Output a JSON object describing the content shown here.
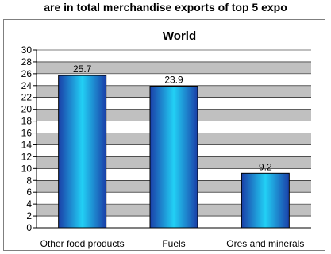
{
  "page_heading": "are in total merchandise exports of top 5 expo",
  "chart_data": {
    "type": "bar",
    "title": "World",
    "categories": [
      "Other food products",
      "Fuels",
      "Ores and minerals"
    ],
    "values": [
      25.7,
      23.9,
      9.2
    ],
    "data_labels": [
      "25.7",
      "23.9",
      "9.2"
    ],
    "ylim": [
      0,
      30
    ],
    "yticks": [
      0,
      2,
      4,
      6,
      8,
      10,
      12,
      14,
      16,
      18,
      20,
      22,
      24,
      26,
      28,
      30
    ],
    "ytick_labels": [
      "0",
      "2",
      "4",
      "6",
      "8",
      "10",
      "12",
      "14",
      "16",
      "18",
      "20",
      "22",
      "24",
      "26",
      "28",
      "30"
    ],
    "xlabel": "",
    "ylabel": "",
    "grid": true,
    "legend": "none",
    "colors": {
      "bar_dark": "#1a3fa8",
      "bar_light": "#22d0f5",
      "band_gray": "#c0c0c0",
      "band_white": "#ffffff",
      "gridline": "#000000"
    }
  }
}
